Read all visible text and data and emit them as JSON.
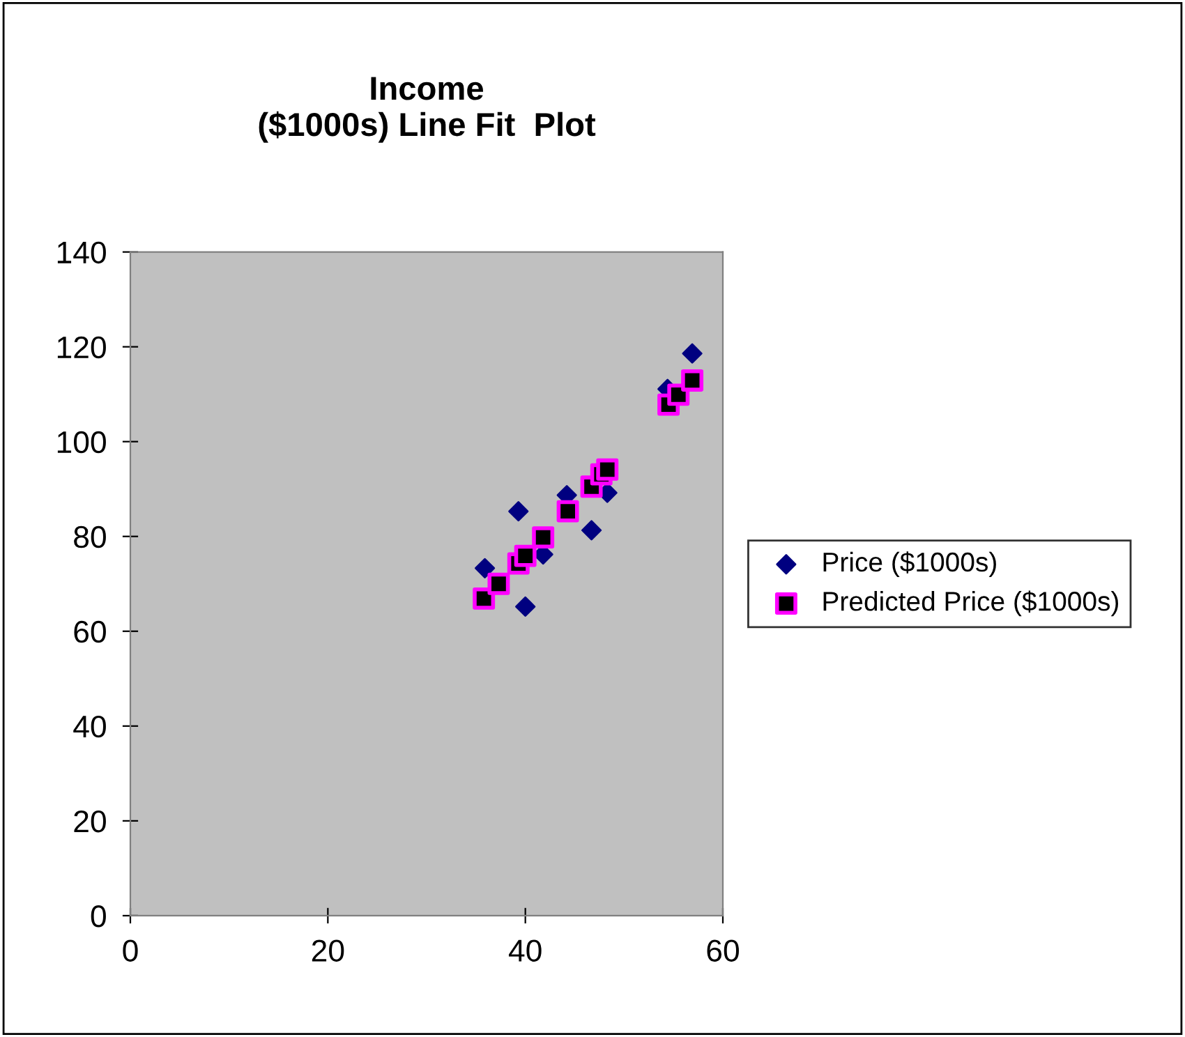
{
  "chart_data": {
    "type": "scatter",
    "title": "Income\n($1000s) Line Fit  Plot",
    "x": [
      35.9,
      37.3,
      39.3,
      40.0,
      41.8,
      44.2,
      46.7,
      47.7,
      48.3,
      54.4,
      55.5,
      56.9
    ],
    "series": [
      {
        "name": "Price ($1000s)",
        "color": "#000080",
        "marker": "diamond",
        "values": [
          73.3,
          null,
          85.3,
          65.2,
          76.2,
          88.7,
          81.3,
          null,
          89.2,
          111.1,
          null,
          118.6
        ]
      },
      {
        "name": "Predicted Price ($1000s)",
        "color": "#ff00ff",
        "marker": "square",
        "x": [
          35.8,
          37.3,
          39.3,
          40.0,
          41.8,
          44.3,
          46.7,
          47.7,
          48.3,
          54.5,
          55.5,
          56.9
        ],
        "values": [
          66.9,
          70.0,
          74.3,
          75.9,
          79.8,
          85.3,
          90.5,
          93.1,
          94.1,
          107.8,
          109.9,
          112.9
        ]
      }
    ],
    "xlim": [
      0,
      60
    ],
    "xticks": [
      0,
      20,
      40,
      60
    ],
    "ylim": [
      0,
      140
    ],
    "yticks": [
      0,
      20,
      40,
      60,
      80,
      100,
      120,
      140
    ],
    "grid": false,
    "legend": "right"
  }
}
